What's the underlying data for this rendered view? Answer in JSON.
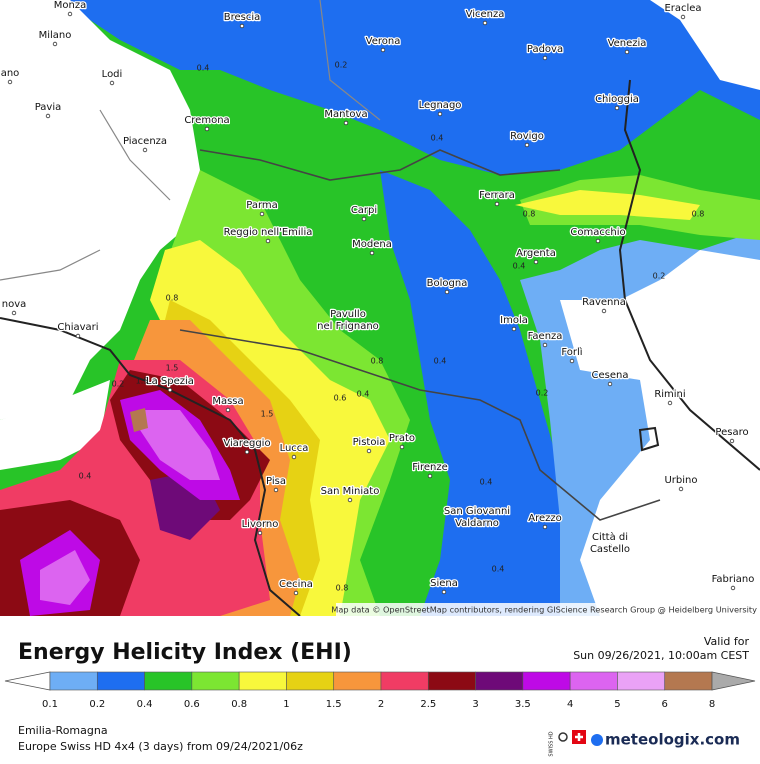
{
  "map": {
    "cities": [
      [
        "Monza"
      ],
      [
        "Brescia"
      ],
      [
        "Vicenza"
      ],
      [
        "Eraclea"
      ],
      [
        "Milano"
      ],
      [
        "Verona"
      ],
      [
        "Padova"
      ],
      [
        "Venezia"
      ],
      [
        "Lodi"
      ],
      [
        "ano"
      ],
      [
        "Pavia"
      ],
      [
        "Legnago"
      ],
      [
        "Chioggia"
      ],
      [
        "Cremona"
      ],
      [
        "Mantova"
      ],
      [
        "Rovigo"
      ],
      [
        "Piacenza"
      ],
      [
        "Ferrara"
      ],
      [
        "Parma"
      ],
      [
        "Carpi"
      ],
      [
        "Comacchio"
      ],
      [
        "Reggio nell'Emilia"
      ],
      [
        "Modena"
      ],
      [
        "Argenta"
      ],
      [
        "Bologna"
      ],
      [
        "nova"
      ],
      [
        "Ravenna"
      ],
      [
        "Pavullo",
        "nel Frignano"
      ],
      [
        "Chiavari"
      ],
      [
        "Imola"
      ],
      [
        "Faenza"
      ],
      [
        "Forlì"
      ],
      [
        "Cesena"
      ],
      [
        "La Spezia"
      ],
      [
        "Rimini"
      ],
      [
        "Massa"
      ],
      [
        "Pesaro"
      ],
      [
        "Viareggio"
      ],
      [
        "Lucca"
      ],
      [
        "Pistoia"
      ],
      [
        "Prato"
      ],
      [
        "Firenze"
      ],
      [
        "Pisa"
      ],
      [
        "San Miniato"
      ],
      [
        "Urbino"
      ],
      [
        "San Giovanni",
        "Valdarno"
      ],
      [
        "Livorno"
      ],
      [
        "Arezzo"
      ],
      [
        "Città di",
        "Castello"
      ],
      [
        "Cecina"
      ],
      [
        "Siena"
      ],
      [
        "Fabriano"
      ]
    ],
    "contour_labels": [
      "0.4",
      "0.2",
      "0.4",
      "0.8",
      "0.8",
      "0.4",
      "0.2",
      "0.8",
      "0.8",
      "0.4",
      "1.5",
      "0.2",
      "0.4",
      "0.6",
      "0.2",
      "1.5",
      "1.5",
      "0.4",
      "0.4",
      "0.4",
      "0.8"
    ],
    "attribution": "Map data © OpenStreetMap contributors, rendering GIScience Research Group @ Heidelberg University"
  },
  "legend": {
    "title": "Energy Helicity Index (EHI)",
    "valid_label": "Valid for",
    "valid_time": "Sun 09/26/2021, 10:00am CEST",
    "ticks": [
      "0.1",
      "0.2",
      "0.4",
      "0.6",
      "0.8",
      "1",
      "1.5",
      "2",
      "2.5",
      "3",
      "3.5",
      "4",
      "5",
      "6",
      "8"
    ],
    "colors": [
      "#6eaef5",
      "#1e6ef0",
      "#28c428",
      "#7ce632",
      "#f8f83c",
      "#e6d214",
      "#f7963c",
      "#f03c64",
      "#8c0a14",
      "#6e0a78",
      "#be0ae6",
      "#dc64f0",
      "#eaa2f6",
      "#b47850"
    ]
  },
  "footer": {
    "region": "Emilia-Romagna",
    "model": "Europe Swiss HD 4x4 (3 days) from 09/24/2021/06z",
    "badge": "SWISS HD",
    "brand": "meteologix.com"
  }
}
